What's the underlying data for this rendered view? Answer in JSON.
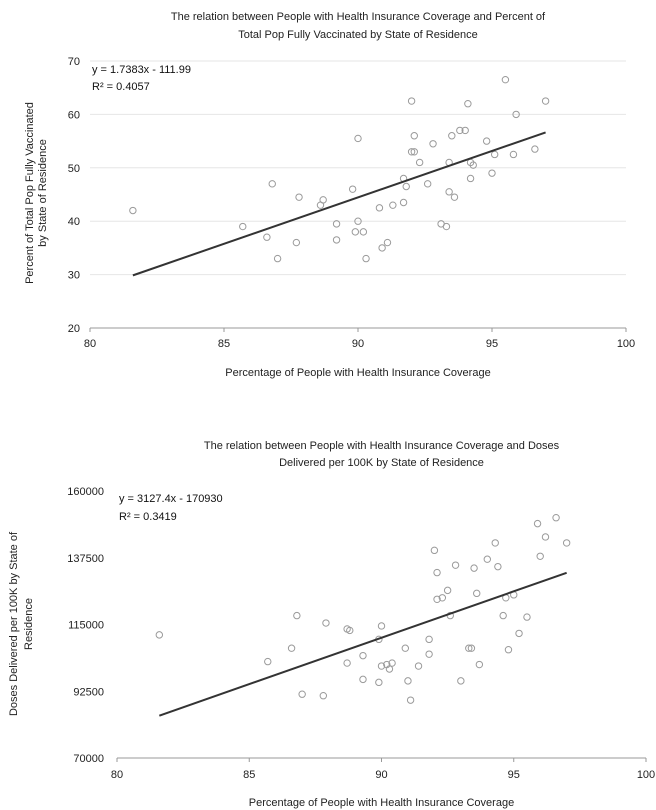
{
  "chart_data": [
    {
      "type": "scatter",
      "title_lines": [
        "The relation between People with Health Insurance Coverage and Percent of",
        "Total Pop Fully Vaccinated by State of Residence"
      ],
      "xlabel": "Percentage of People with Health Insurance Coverage",
      "ylabel_lines": [
        "Percent of Total Pop Fully Vaccinated",
        "by State of Residence"
      ],
      "xlim": [
        80,
        100
      ],
      "ylim": [
        20,
        70
      ],
      "xticks": [
        80,
        85,
        90,
        95,
        100
      ],
      "yticks": [
        20,
        30,
        40,
        50,
        60,
        70
      ],
      "grid": "horizontal",
      "trendline": {
        "slope": 1.7383,
        "intercept": -111.99,
        "x_range": [
          81.6,
          97
        ]
      },
      "equation": "y = 1.7383x - 111.99",
      "r2": "R² = 0.4057",
      "points": [
        {
          "x": 81.6,
          "y": 42
        },
        {
          "x": 85.7,
          "y": 39
        },
        {
          "x": 86.6,
          "y": 37
        },
        {
          "x": 86.8,
          "y": 47
        },
        {
          "x": 87.0,
          "y": 33
        },
        {
          "x": 87.7,
          "y": 36
        },
        {
          "x": 87.8,
          "y": 44.5
        },
        {
          "x": 88.6,
          "y": 43
        },
        {
          "x": 88.7,
          "y": 44
        },
        {
          "x": 89.2,
          "y": 39.5
        },
        {
          "x": 89.2,
          "y": 36.5
        },
        {
          "x": 89.8,
          "y": 46
        },
        {
          "x": 89.9,
          "y": 38
        },
        {
          "x": 90.0,
          "y": 55.5
        },
        {
          "x": 90.0,
          "y": 40
        },
        {
          "x": 90.2,
          "y": 38
        },
        {
          "x": 90.3,
          "y": 33
        },
        {
          "x": 90.8,
          "y": 42.5
        },
        {
          "x": 90.9,
          "y": 35
        },
        {
          "x": 91.1,
          "y": 36
        },
        {
          "x": 91.3,
          "y": 43
        },
        {
          "x": 91.7,
          "y": 43.5
        },
        {
          "x": 91.7,
          "y": 48
        },
        {
          "x": 91.8,
          "y": 46.5
        },
        {
          "x": 92.0,
          "y": 62.5
        },
        {
          "x": 92.0,
          "y": 53
        },
        {
          "x": 92.1,
          "y": 56
        },
        {
          "x": 92.1,
          "y": 53
        },
        {
          "x": 92.3,
          "y": 51
        },
        {
          "x": 92.6,
          "y": 47
        },
        {
          "x": 92.8,
          "y": 54.5
        },
        {
          "x": 93.1,
          "y": 39.5
        },
        {
          "x": 93.3,
          "y": 39
        },
        {
          "x": 93.4,
          "y": 51
        },
        {
          "x": 93.4,
          "y": 45.5
        },
        {
          "x": 93.5,
          "y": 56
        },
        {
          "x": 93.6,
          "y": 44.5
        },
        {
          "x": 93.8,
          "y": 57
        },
        {
          "x": 94.0,
          "y": 57
        },
        {
          "x": 94.1,
          "y": 62
        },
        {
          "x": 94.2,
          "y": 51
        },
        {
          "x": 94.2,
          "y": 48
        },
        {
          "x": 94.3,
          "y": 50.5
        },
        {
          "x": 94.8,
          "y": 55
        },
        {
          "x": 95.0,
          "y": 49
        },
        {
          "x": 95.1,
          "y": 52.5
        },
        {
          "x": 95.5,
          "y": 66.5
        },
        {
          "x": 95.8,
          "y": 52.5
        },
        {
          "x": 95.9,
          "y": 60
        },
        {
          "x": 96.6,
          "y": 53.5
        },
        {
          "x": 97.0,
          "y": 62.5
        }
      ]
    },
    {
      "type": "scatter",
      "title_lines": [
        "The relation between People with Health Insurance Coverage and Doses",
        "Delivered per 100K by State of Residence"
      ],
      "xlabel": "Percentage of People with Health Insurance Coverage",
      "ylabel_lines": [
        "Doses Delivered per 100K by State of",
        "Residence"
      ],
      "xlim": [
        80,
        100
      ],
      "ylim": [
        70000,
        160000
      ],
      "xticks": [
        80,
        85,
        90,
        95,
        100
      ],
      "yticks": [
        70000,
        92500,
        115000,
        137500,
        160000
      ],
      "grid": "none",
      "trendline": {
        "slope": 3127.4,
        "intercept": -170930,
        "x_range": [
          81.6,
          97
        ]
      },
      "equation": "y = 3127.4x - 170930",
      "r2": "R² = 0.3419",
      "points": [
        {
          "x": 81.6,
          "y": 111500
        },
        {
          "x": 85.7,
          "y": 102500
        },
        {
          "x": 86.6,
          "y": 107000
        },
        {
          "x": 86.8,
          "y": 118000
        },
        {
          "x": 87.0,
          "y": 91500
        },
        {
          "x": 87.8,
          "y": 91000
        },
        {
          "x": 87.9,
          "y": 115500
        },
        {
          "x": 88.7,
          "y": 102000
        },
        {
          "x": 88.7,
          "y": 113500
        },
        {
          "x": 88.8,
          "y": 113000
        },
        {
          "x": 89.3,
          "y": 96500
        },
        {
          "x": 89.3,
          "y": 104500
        },
        {
          "x": 89.9,
          "y": 95500
        },
        {
          "x": 89.9,
          "y": 110000
        },
        {
          "x": 90.0,
          "y": 114500
        },
        {
          "x": 90.0,
          "y": 101000
        },
        {
          "x": 90.2,
          "y": 101500
        },
        {
          "x": 90.3,
          "y": 100000
        },
        {
          "x": 90.4,
          "y": 102000
        },
        {
          "x": 90.9,
          "y": 107000
        },
        {
          "x": 91.0,
          "y": 96000
        },
        {
          "x": 91.1,
          "y": 89500
        },
        {
          "x": 91.4,
          "y": 101000
        },
        {
          "x": 91.8,
          "y": 105000
        },
        {
          "x": 91.8,
          "y": 110000
        },
        {
          "x": 92.0,
          "y": 140000
        },
        {
          "x": 92.1,
          "y": 132500
        },
        {
          "x": 92.1,
          "y": 123500
        },
        {
          "x": 92.3,
          "y": 124000
        },
        {
          "x": 92.5,
          "y": 126500
        },
        {
          "x": 92.6,
          "y": 118000
        },
        {
          "x": 92.8,
          "y": 135000
        },
        {
          "x": 93.0,
          "y": 96000
        },
        {
          "x": 93.3,
          "y": 107000
        },
        {
          "x": 93.4,
          "y": 107000
        },
        {
          "x": 93.5,
          "y": 134000
        },
        {
          "x": 93.6,
          "y": 125500
        },
        {
          "x": 93.7,
          "y": 101500
        },
        {
          "x": 94.0,
          "y": 137000
        },
        {
          "x": 94.3,
          "y": 142500
        },
        {
          "x": 94.4,
          "y": 134500
        },
        {
          "x": 94.6,
          "y": 118000
        },
        {
          "x": 94.7,
          "y": 124000
        },
        {
          "x": 94.8,
          "y": 106500
        },
        {
          "x": 95.0,
          "y": 125000
        },
        {
          "x": 95.2,
          "y": 112000
        },
        {
          "x": 95.5,
          "y": 117500
        },
        {
          "x": 95.9,
          "y": 149000
        },
        {
          "x": 96.0,
          "y": 138000
        },
        {
          "x": 96.2,
          "y": 144500
        },
        {
          "x": 96.6,
          "y": 151000
        },
        {
          "x": 97.0,
          "y": 142500
        }
      ]
    }
  ]
}
